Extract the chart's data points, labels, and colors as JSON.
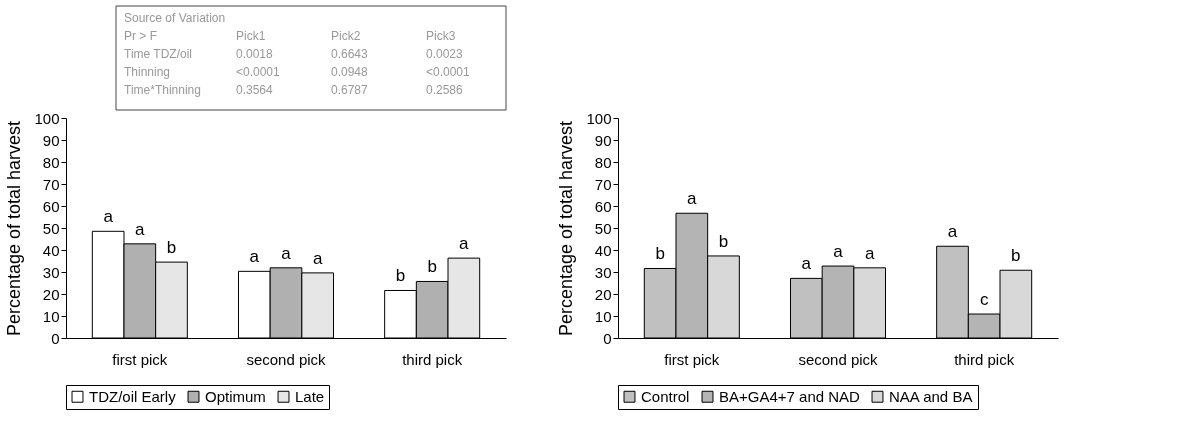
{
  "chart_data": [
    {
      "type": "bar",
      "categories": [
        "first pick",
        "second pick",
        "third pick"
      ],
      "ylabel": "Percentage of total harvest",
      "ylim": [
        0,
        100
      ],
      "yticks": [
        0,
        10,
        20,
        30,
        40,
        50,
        60,
        70,
        80,
        90,
        100
      ],
      "legend": "bottom",
      "grid": false,
      "series": [
        {
          "name": "TDZ/oil Early",
          "color": "#ffffff",
          "values": [
            48.5,
            30.3,
            21.6
          ],
          "value_labels": [
            "a",
            "a",
            "b"
          ]
        },
        {
          "name": "Optimum",
          "color": "#b0b0b0",
          "values": [
            42.8,
            31.9,
            25.7
          ],
          "value_labels": [
            "a",
            "a",
            "b"
          ]
        },
        {
          "name": "Late",
          "color": "#e6e6e6",
          "values": [
            34.5,
            29.6,
            36.3
          ],
          "value_labels": [
            "b",
            "a",
            "a"
          ]
        }
      ],
      "annotations": [
        "Source of Variation",
        "Pr > F",
        "Pick1",
        "Pick2",
        "Pick3",
        "Time TDZ/oil",
        "0.0018",
        "0.6643",
        "0.0023",
        "Thinning",
        "<0.0001",
        "0.0948",
        "<0.0001",
        "Time*Thinning",
        "0.3564",
        "0.6787",
        "0.2586"
      ]
    },
    {
      "type": "bar",
      "categories": [
        "first pick",
        "second pick",
        "third pick"
      ],
      "ylabel": "Percentage of total harvest",
      "ylim": [
        0,
        100
      ],
      "yticks": [
        0,
        10,
        20,
        30,
        40,
        50,
        60,
        70,
        80,
        90,
        100
      ],
      "legend": "bottom",
      "grid": false,
      "series": [
        {
          "name": "Control",
          "color": "#c0c0c0",
          "values": [
            31.6,
            27.1,
            41.7
          ],
          "value_labels": [
            "b",
            "a",
            "a"
          ]
        },
        {
          "name": "BA+GA4+7 and NAD",
          "color": "#b4b4b4",
          "values": [
            56.7,
            32.7,
            10.9
          ],
          "value_labels": [
            "a",
            "a",
            "c"
          ]
        },
        {
          "name": "NAA and BA",
          "color": "#d8d8d8",
          "values": [
            37.3,
            31.9,
            30.8
          ],
          "value_labels": [
            "b",
            "a",
            "b"
          ]
        }
      ]
    }
  ]
}
